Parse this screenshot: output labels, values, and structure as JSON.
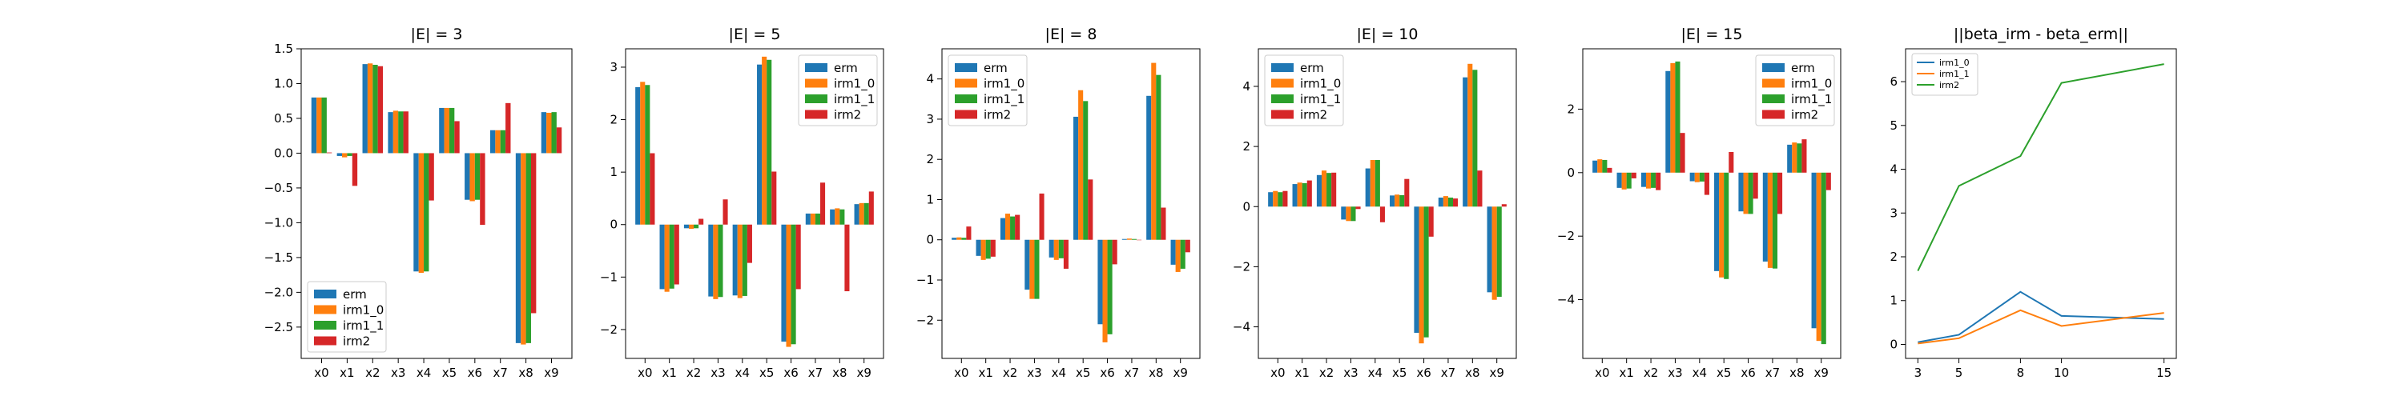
{
  "colors": {
    "erm": "#1f77b4",
    "irm1_0": "#ff7f0e",
    "irm1_1": "#2ca02c",
    "irm2": "#d62728"
  },
  "chart_data": [
    {
      "type": "bar",
      "title": "|E| = 3",
      "categories": [
        "x0",
        "x1",
        "x2",
        "x3",
        "x4",
        "x5",
        "x6",
        "x7",
        "x8",
        "x9"
      ],
      "ylim": [
        -2.95,
        1.5
      ],
      "yticks": [
        -2.5,
        -2.0,
        -1.5,
        -1.0,
        -0.5,
        0.0,
        0.5,
        1.0,
        1.5
      ],
      "ytick_labels": [
        "−2.5",
        "−2.0",
        "−1.5",
        "−1.0",
        "−0.5",
        "0.0",
        "0.5",
        "1.0",
        "1.5"
      ],
      "legend_position": "lower-left",
      "series": [
        {
          "name": "erm",
          "color": "#1f77b4",
          "values": [
            0.8,
            -0.04,
            1.28,
            0.59,
            -1.7,
            0.65,
            -0.67,
            0.33,
            -2.73,
            0.59
          ]
        },
        {
          "name": "irm1_0",
          "color": "#ff7f0e",
          "values": [
            0.8,
            -0.06,
            1.29,
            0.61,
            -1.72,
            0.65,
            -0.69,
            0.33,
            -2.75,
            0.58
          ]
        },
        {
          "name": "irm1_1",
          "color": "#2ca02c",
          "values": [
            0.8,
            -0.04,
            1.27,
            0.6,
            -1.7,
            0.65,
            -0.67,
            0.33,
            -2.73,
            0.59
          ]
        },
        {
          "name": "irm2",
          "color": "#d62728",
          "values": [
            0.01,
            -0.47,
            1.25,
            0.6,
            -0.68,
            0.46,
            -1.03,
            0.72,
            -2.3,
            0.37
          ]
        }
      ]
    },
    {
      "type": "bar",
      "title": "|E| = 5",
      "categories": [
        "x0",
        "x1",
        "x2",
        "x3",
        "x4",
        "x5",
        "x6",
        "x7",
        "x8",
        "x9"
      ],
      "ylim": [
        -2.55,
        3.35
      ],
      "yticks": [
        -2,
        -1,
        0,
        1,
        2,
        3
      ],
      "ytick_labels": [
        "−2",
        "−1",
        "0",
        "1",
        "2",
        "3"
      ],
      "legend_position": "upper-right",
      "series": [
        {
          "name": "erm",
          "color": "#1f77b4",
          "values": [
            2.62,
            -1.23,
            -0.07,
            -1.37,
            -1.35,
            3.05,
            -2.23,
            0.21,
            0.29,
            0.39
          ]
        },
        {
          "name": "irm1_0",
          "color": "#ff7f0e",
          "values": [
            2.72,
            -1.28,
            -0.08,
            -1.42,
            -1.4,
            3.2,
            -2.33,
            0.21,
            0.31,
            0.41
          ]
        },
        {
          "name": "irm1_1",
          "color": "#2ca02c",
          "values": [
            2.66,
            -1.22,
            -0.07,
            -1.38,
            -1.36,
            3.14,
            -2.28,
            0.21,
            0.29,
            0.41
          ]
        },
        {
          "name": "irm2",
          "color": "#d62728",
          "values": [
            1.36,
            -1.14,
            0.11,
            0.48,
            -0.73,
            1.01,
            -1.23,
            0.8,
            -1.27,
            0.63
          ]
        }
      ]
    },
    {
      "type": "bar",
      "title": "|E| = 8",
      "categories": [
        "x0",
        "x1",
        "x2",
        "x3",
        "x4",
        "x5",
        "x6",
        "x7",
        "x8",
        "x9"
      ],
      "ylim": [
        -2.95,
        4.75
      ],
      "yticks": [
        -2,
        -1,
        0,
        1,
        2,
        3,
        4
      ],
      "ytick_labels": [
        "−2",
        "−1",
        "0",
        "1",
        "2",
        "3",
        "4"
      ],
      "legend_position": "upper-left",
      "series": [
        {
          "name": "erm",
          "color": "#1f77b4",
          "values": [
            0.05,
            -0.4,
            0.54,
            -1.24,
            -0.44,
            3.06,
            -2.1,
            0.02,
            3.58,
            -0.62
          ]
        },
        {
          "name": "irm1_0",
          "color": "#ff7f0e",
          "values": [
            0.06,
            -0.5,
            0.65,
            -1.47,
            -0.5,
            3.72,
            -2.55,
            0.03,
            4.4,
            -0.8
          ]
        },
        {
          "name": "irm1_1",
          "color": "#2ca02c",
          "values": [
            0.05,
            -0.47,
            0.58,
            -1.47,
            -0.46,
            3.45,
            -2.35,
            0.02,
            4.1,
            -0.72
          ]
        },
        {
          "name": "irm2",
          "color": "#d62728",
          "values": [
            0.33,
            -0.42,
            0.62,
            1.15,
            -0.72,
            1.5,
            -0.61,
            0.0,
            0.8,
            -0.31
          ]
        }
      ]
    },
    {
      "type": "bar",
      "title": "|E| = 10",
      "categories": [
        "x0",
        "x1",
        "x2",
        "x3",
        "x4",
        "x5",
        "x6",
        "x7",
        "x8",
        "x9"
      ],
      "ylim": [
        -5.05,
        5.25
      ],
      "yticks": [
        -4,
        -2,
        0,
        2,
        4
      ],
      "ytick_labels": [
        "−4",
        "−2",
        "0",
        "2",
        "4"
      ],
      "legend_position": "upper-left",
      "series": [
        {
          "name": "erm",
          "color": "#1f77b4",
          "values": [
            0.48,
            0.75,
            1.05,
            -0.43,
            1.27,
            0.37,
            -4.2,
            0.3,
            4.3,
            -2.85
          ]
        },
        {
          "name": "irm1_0",
          "color": "#ff7f0e",
          "values": [
            0.52,
            0.8,
            1.2,
            -0.48,
            1.55,
            0.4,
            -4.55,
            0.35,
            4.75,
            -3.1
          ]
        },
        {
          "name": "irm1_1",
          "color": "#2ca02c",
          "values": [
            0.48,
            0.78,
            1.12,
            -0.48,
            1.55,
            0.38,
            -4.35,
            0.3,
            4.55,
            -3.0
          ]
        },
        {
          "name": "irm2",
          "color": "#d62728",
          "values": [
            0.52,
            0.87,
            1.13,
            -0.08,
            -0.52,
            0.92,
            -1.0,
            0.27,
            1.2,
            0.08
          ]
        }
      ]
    },
    {
      "type": "bar",
      "title": "|E| = 15",
      "categories": [
        "x0",
        "x1",
        "x2",
        "x3",
        "x4",
        "x5",
        "x6",
        "x7",
        "x8",
        "x9"
      ],
      "ylim": [
        -5.85,
        3.9
      ],
      "yticks": [
        -4,
        -2,
        0,
        2
      ],
      "ytick_labels": [
        "−4",
        "−2",
        "0",
        "2"
      ],
      "legend_position": "upper-right",
      "series": [
        {
          "name": "erm",
          "color": "#1f77b4",
          "values": [
            0.38,
            -0.48,
            -0.45,
            3.2,
            -0.27,
            -3.1,
            -1.22,
            -2.8,
            0.88,
            -4.9
          ]
        },
        {
          "name": "irm1_0",
          "color": "#ff7f0e",
          "values": [
            0.42,
            -0.53,
            -0.5,
            3.45,
            -0.3,
            -3.3,
            -1.3,
            -3.0,
            0.95,
            -5.3
          ]
        },
        {
          "name": "irm1_1",
          "color": "#2ca02c",
          "values": [
            0.4,
            -0.5,
            -0.48,
            3.5,
            -0.28,
            -3.35,
            -1.3,
            -3.02,
            0.92,
            -5.4
          ]
        },
        {
          "name": "irm2",
          "color": "#d62728",
          "values": [
            0.15,
            -0.18,
            -0.55,
            1.25,
            -0.7,
            0.65,
            -0.82,
            -1.3,
            1.05,
            -0.55
          ]
        }
      ]
    },
    {
      "type": "line",
      "title": "||beta_irm - beta_erm||",
      "x": [
        3,
        5,
        8,
        10,
        15
      ],
      "xtick_labels": [
        "3",
        "5",
        "8",
        "10",
        "15"
      ],
      "ylim": [
        -0.32,
        6.75
      ],
      "yticks": [
        0,
        1,
        2,
        3,
        4,
        5,
        6
      ],
      "ytick_labels": [
        "0",
        "1",
        "2",
        "3",
        "4",
        "5",
        "6"
      ],
      "legend_position": "upper-left",
      "series": [
        {
          "name": "irm1_0",
          "color": "#1f77b4",
          "values": [
            0.05,
            0.22,
            1.2,
            0.65,
            0.58
          ]
        },
        {
          "name": "irm1_1",
          "color": "#ff7f0e",
          "values": [
            0.02,
            0.14,
            0.78,
            0.42,
            0.72
          ]
        },
        {
          "name": "irm2",
          "color": "#2ca02c",
          "values": [
            1.68,
            3.62,
            4.3,
            5.97,
            6.4
          ]
        }
      ]
    }
  ]
}
